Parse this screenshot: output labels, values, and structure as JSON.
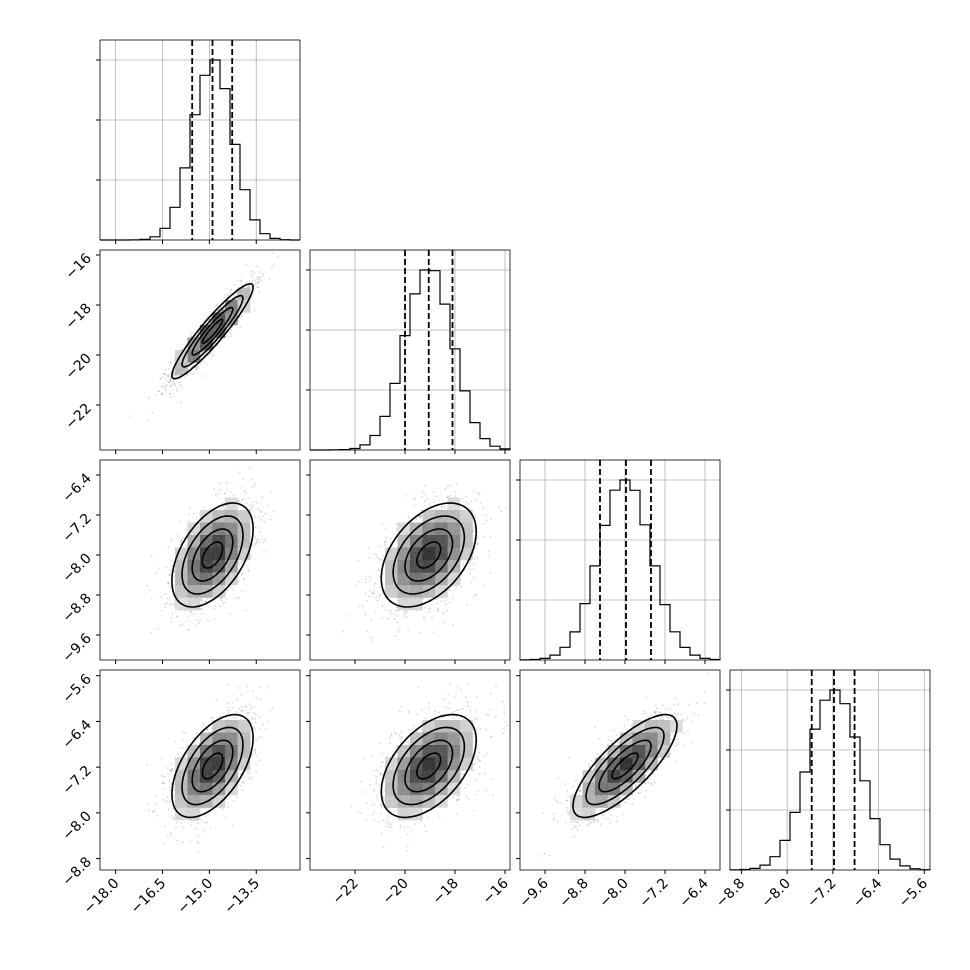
{
  "chart_data": {
    "type": "corner",
    "grid": true,
    "quantile_lines": "dashed",
    "params": [
      {
        "range": [
          -18.5,
          -12.1
        ],
        "ticks": [
          -18.0,
          -16.5,
          -15.0,
          -13.5
        ],
        "tick_labels": [
          "−18.0",
          "−16.5",
          "−15.0",
          "−13.5"
        ],
        "mean": -14.9,
        "sd": 0.65,
        "quantiles": [
          -15.55,
          -14.9,
          -14.27
        ]
      },
      {
        "range": [
          -23.8,
          -15.8
        ],
        "ticks": [
          -22,
          -20,
          -18,
          -16
        ],
        "tick_labels": [
          "−22",
          "−20",
          "−18",
          "−16"
        ],
        "mean": -19.05,
        "sd": 0.95,
        "quantiles": [
          -20.0,
          -19.05,
          -18.1
        ]
      },
      {
        "range": [
          -10.1,
          -6.1
        ],
        "ticks": [
          -9.6,
          -8.8,
          -8.0,
          -7.2,
          -6.4
        ],
        "tick_labels": [
          "−9.6",
          "−8.8",
          "−8.0",
          "−7.2",
          "−6.4"
        ],
        "mean": -8.0,
        "sd": 0.52,
        "quantiles": [
          -8.5,
          -7.98,
          -7.48
        ]
      },
      {
        "range": [
          -9.0,
          -5.5
        ],
        "ticks": [
          -8.8,
          -8.0,
          -7.2,
          -6.4,
          -5.6
        ],
        "tick_labels": [
          "−8.8",
          "−8.0",
          "−7.2",
          "−6.4",
          "−5.6"
        ],
        "mean": -7.18,
        "sd": 0.45,
        "quantiles": [
          -7.57,
          -7.18,
          -6.82
        ]
      }
    ],
    "correlations": [
      {
        "x": 0,
        "y": 1,
        "rho": 0.93
      },
      {
        "x": 0,
        "y": 2,
        "rho": 0.5
      },
      {
        "x": 1,
        "y": 2,
        "rho": 0.45
      },
      {
        "x": 0,
        "y": 3,
        "rho": 0.55
      },
      {
        "x": 1,
        "y": 3,
        "rho": 0.5
      },
      {
        "x": 2,
        "y": 3,
        "rho": 0.78
      }
    ],
    "contour_levels_sigma": [
      0.5,
      1.0,
      1.5,
      2.0
    ]
  }
}
